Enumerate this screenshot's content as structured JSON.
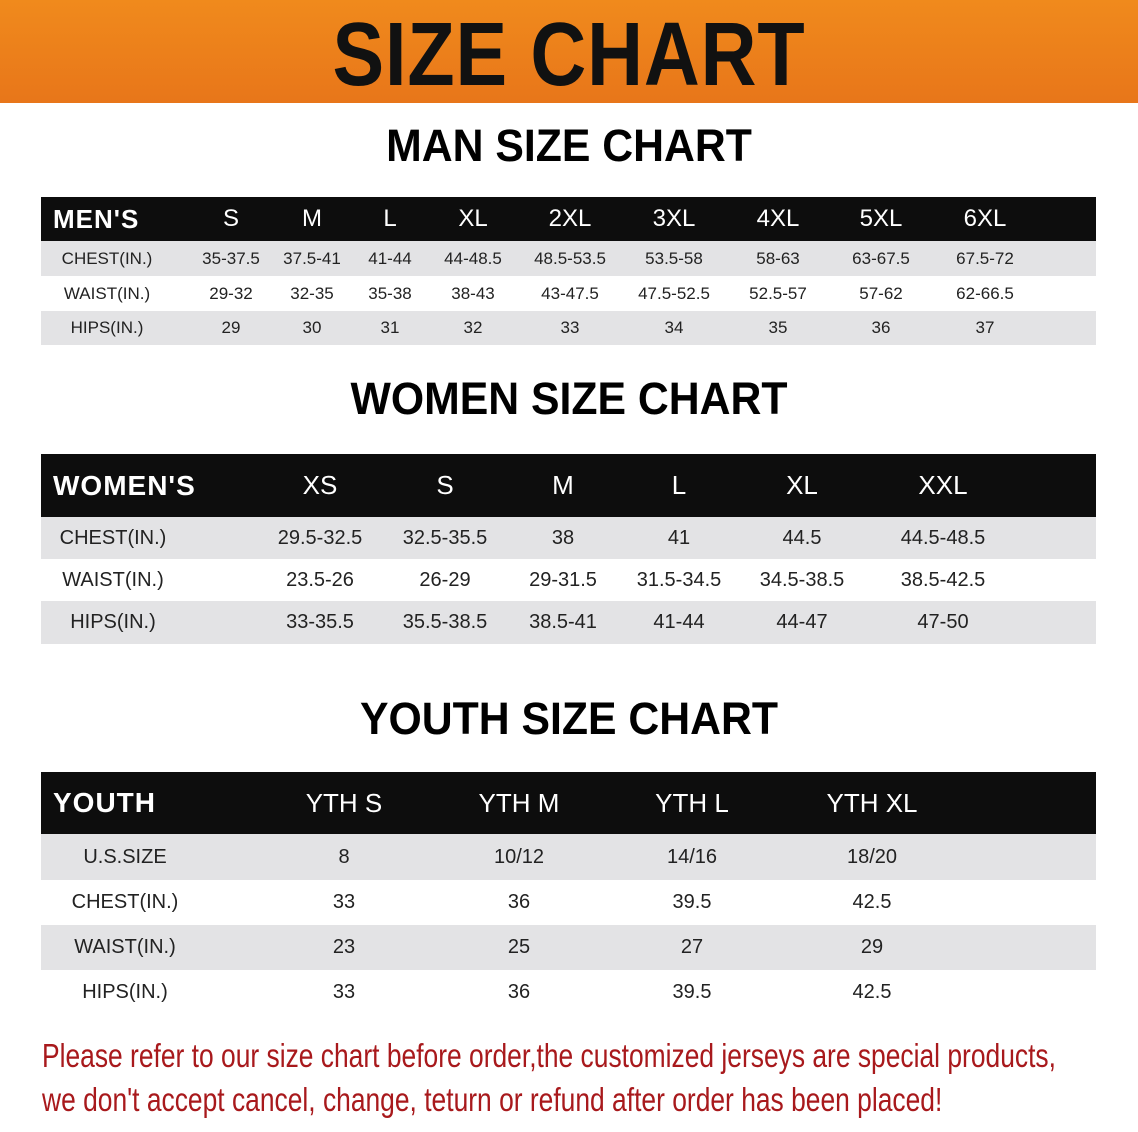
{
  "banner": {
    "title": "SIZE CHART",
    "color": "#ec801b"
  },
  "men": {
    "title": "MAN SIZE CHART",
    "header": [
      "MEN'S",
      "S",
      "M",
      "L",
      "XL",
      "2XL",
      "3XL",
      "4XL",
      "5XL",
      "6XL"
    ],
    "rows": [
      [
        "CHEST(IN.)",
        "35-37.5",
        "37.5-41",
        "41-44",
        "44-48.5",
        "48.5-53.5",
        "53.5-58",
        "58-63",
        "63-67.5",
        "67.5-72"
      ],
      [
        "WAIST(IN.)",
        "29-32",
        "32-35",
        "35-38",
        "38-43",
        "43-47.5",
        "47.5-52.5",
        "52.5-57",
        "57-62",
        "62-66.5"
      ],
      [
        "HIPS(IN.)",
        "29",
        "30",
        "31",
        "32",
        "33",
        "34",
        "35",
        "36",
        "37"
      ]
    ]
  },
  "women": {
    "title": "WOMEN SIZE CHART",
    "header": [
      "WOMEN'S",
      "XS",
      "S",
      "M",
      "L",
      "XL",
      "XXL"
    ],
    "rows": [
      [
        "CHEST(IN.)",
        "29.5-32.5",
        "32.5-35.5",
        "38",
        "41",
        "44.5",
        "44.5-48.5"
      ],
      [
        "WAIST(IN.)",
        "23.5-26",
        "26-29",
        "29-31.5",
        "31.5-34.5",
        "34.5-38.5",
        "38.5-42.5"
      ],
      [
        "HIPS(IN.)",
        "33-35.5",
        "35.5-38.5",
        "38.5-41",
        "41-44",
        "44-47",
        "47-50"
      ]
    ]
  },
  "youth": {
    "title": "YOUTH SIZE CHART",
    "header": [
      "YOUTH",
      "YTH S",
      "YTH M",
      "YTH L",
      "YTH XL"
    ],
    "rows": [
      [
        "U.S.SIZE",
        "8",
        "10/12",
        "14/16",
        "18/20"
      ],
      [
        "CHEST(IN.)",
        "33",
        "36",
        "39.5",
        "42.5"
      ],
      [
        "WAIST(IN.)",
        "23",
        "25",
        "27",
        "29"
      ],
      [
        "HIPS(IN.)",
        "33",
        "36",
        "39.5",
        "42.5"
      ]
    ]
  },
  "note": {
    "line1": "Please refer to our size chart before order,the customized jerseys are special products,",
    "line2": "we don't accept cancel, change, teturn or refund after order has been placed!",
    "color": "#a8191c"
  }
}
